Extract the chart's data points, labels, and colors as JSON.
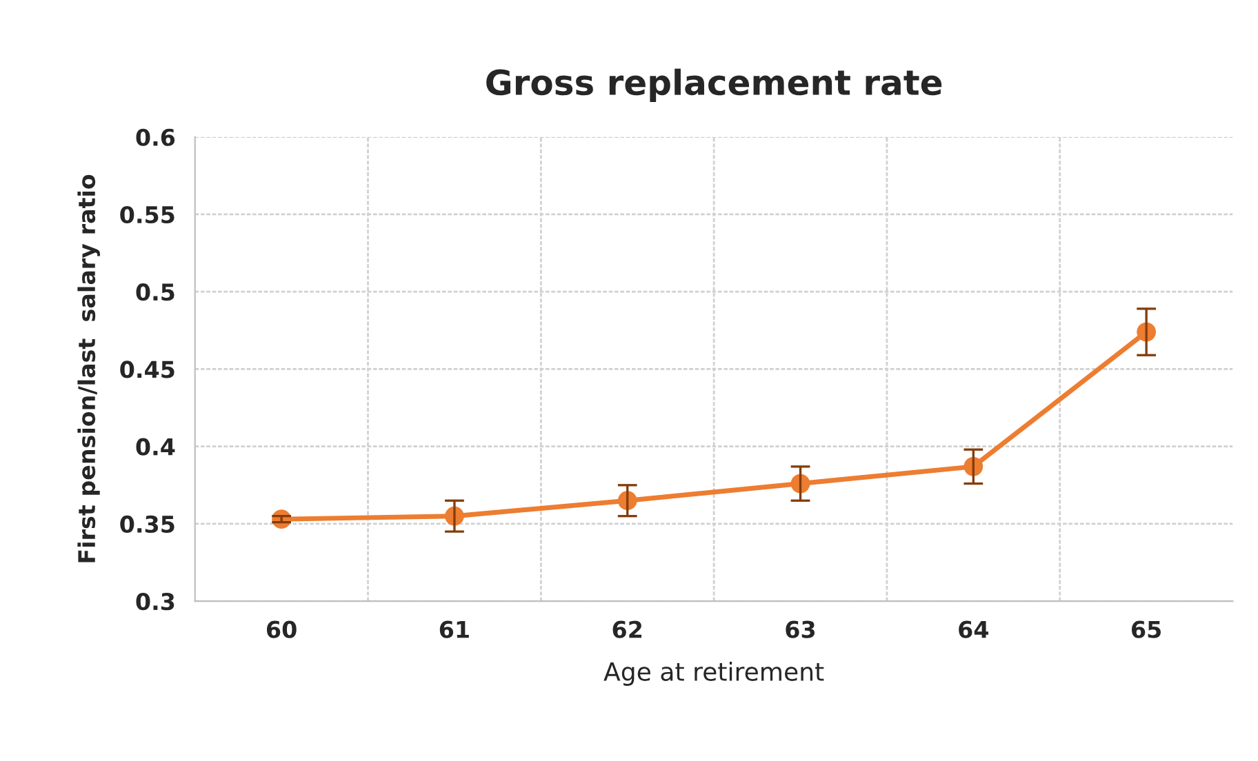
{
  "chart_data": {
    "type": "line",
    "title": "Gross replacement rate",
    "xlabel": "Age at retirement",
    "ylabel": "First pension/last  salary ratio",
    "categories": [
      "60",
      "61",
      "62",
      "63",
      "64",
      "65"
    ],
    "series": [
      {
        "color": "#ed7d31",
        "values": [
          0.353,
          0.355,
          0.365,
          0.376,
          0.387,
          0.474
        ],
        "errors": [
          0.002,
          0.01,
          0.01,
          0.011,
          0.011,
          0.015
        ]
      }
    ],
    "ylim": [
      0.3,
      0.6
    ],
    "yticks": [
      {
        "value": 0.3,
        "label": "0.3"
      },
      {
        "value": 0.35,
        "label": "0.35"
      },
      {
        "value": 0.4,
        "label": "0.4"
      },
      {
        "value": 0.45,
        "label": "0.45"
      },
      {
        "value": 0.5,
        "label": "0.5"
      },
      {
        "value": 0.55,
        "label": "0.55"
      },
      {
        "value": 0.6,
        "label": "0.6"
      }
    ],
    "grid": true,
    "marker": "circle",
    "line_style": "solid"
  }
}
